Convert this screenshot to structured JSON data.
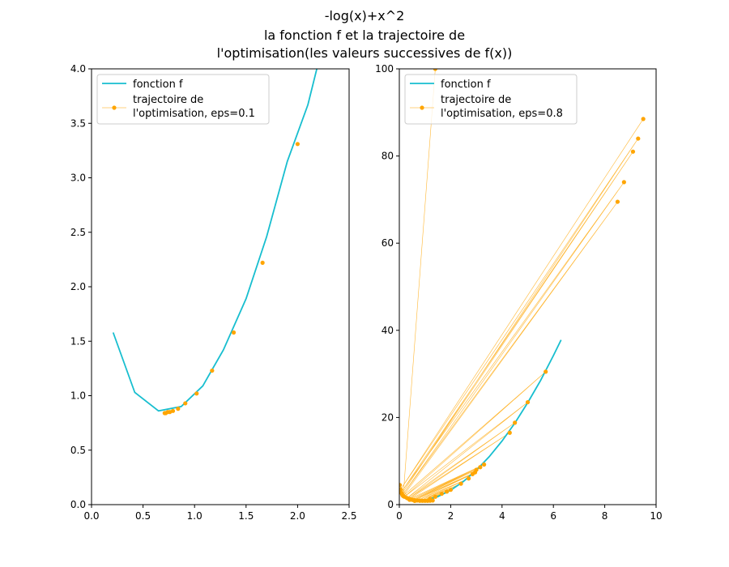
{
  "figure": {
    "title_lines": [
      "-log(x)+x^2",
      "la fonction f et la trajectoire de",
      "l'optimisation(les valeurs successives de f(x))"
    ]
  },
  "colors": {
    "function": "#17becf",
    "trajectory": "#ffa500"
  },
  "chart_data": [
    {
      "type": "line",
      "xlim": [
        0.0,
        2.5
      ],
      "ylim": [
        0.0,
        4.0
      ],
      "x_ticks": [
        "0.0",
        "0.5",
        "1.0",
        "1.5",
        "2.0",
        "2.5"
      ],
      "x_tick_values": [
        0.0,
        0.5,
        1.0,
        1.5,
        2.0,
        2.5
      ],
      "y_ticks": [
        "0.0",
        "0.5",
        "1.0",
        "1.5",
        "2.0",
        "2.5",
        "3.0",
        "3.5",
        "4.0"
      ],
      "y_tick_values": [
        0.0,
        0.5,
        1.0,
        1.5,
        2.0,
        2.5,
        3.0,
        3.5,
        4.0
      ],
      "legend_position": "top-left",
      "series": [
        {
          "name": "fonction f",
          "kind": "line",
          "x": [
            0.21,
            0.42,
            0.65,
            0.87,
            1.08,
            1.28,
            1.5,
            1.7,
            1.9,
            2.1,
            2.2
          ],
          "y": [
            1.58,
            1.03,
            0.86,
            0.9,
            1.09,
            1.42,
            1.89,
            2.46,
            3.15,
            3.67,
            4.05
          ]
        },
        {
          "name": "trajectoire de\nl'optimisation, eps=0.1",
          "kind": "markers",
          "x": [
            2.0,
            1.66,
            1.38,
            1.17,
            1.02,
            0.91,
            0.84,
            0.79,
            0.76,
            0.74,
            0.72,
            0.71
          ],
          "y": [
            3.31,
            2.22,
            1.58,
            1.23,
            1.02,
            0.93,
            0.88,
            0.86,
            0.85,
            0.85,
            0.84,
            0.84
          ]
        }
      ]
    },
    {
      "type": "line",
      "xlim": [
        0,
        10
      ],
      "ylim": [
        0,
        100
      ],
      "x_ticks": [
        "0",
        "2",
        "4",
        "6",
        "8",
        "10"
      ],
      "x_tick_values": [
        0,
        2,
        4,
        6,
        8,
        10
      ],
      "y_ticks": [
        "0",
        "20",
        "40",
        "60",
        "80",
        "100"
      ],
      "y_tick_values": [
        0,
        20,
        40,
        60,
        80,
        100
      ],
      "legend_position": "top-left",
      "series": [
        {
          "name": "fonction f",
          "kind": "line",
          "x": [
            0.05,
            0.1,
            0.2,
            0.3,
            0.5,
            0.7,
            1.0,
            1.5,
            2.0,
            2.5,
            3.0,
            3.5,
            4.0,
            4.5,
            5.0,
            5.5,
            6.0,
            6.3
          ],
          "y": [
            3.0,
            2.31,
            1.65,
            1.29,
            0.94,
            0.85,
            1.0,
            1.84,
            3.31,
            5.33,
            7.9,
            11.0,
            14.6,
            18.7,
            23.4,
            28.5,
            34.2,
            37.8
          ]
        },
        {
          "name": "trajectoire de\nl'optimisation, eps=0.8",
          "kind": "markers+thin-lines",
          "x": [
            9.5,
            0.05,
            9.3,
            0.1,
            9.1,
            0.07,
            8.75,
            0.12,
            8.5,
            0.15,
            5.7,
            0.2,
            5.0,
            0.3,
            4.5,
            0.35,
            4.3,
            0.4,
            3.3,
            0.45,
            3.15,
            0.5,
            3.0,
            0.55,
            2.95,
            0.6,
            2.85,
            0.7,
            2.7,
            0.8,
            2.4,
            0.9,
            2.0,
            1.0,
            1.85,
            1.1,
            1.65,
            1.2,
            1.4,
            1.3,
            1.2,
            0.8,
            0.6,
            0.4,
            0.02,
            0.15,
            1.4
          ],
          "y": [
            88.5,
            3.5,
            84.0,
            2.5,
            81.0,
            2.8,
            74.0,
            2.2,
            69.5,
            2.0,
            30.5,
            1.8,
            23.5,
            1.5,
            18.8,
            1.4,
            16.5,
            1.3,
            9.2,
            1.2,
            8.6,
            1.1,
            8.0,
            1.05,
            7.4,
            1.0,
            7.0,
            0.95,
            6.0,
            0.9,
            4.8,
            0.88,
            3.4,
            0.87,
            3.0,
            0.88,
            2.5,
            0.9,
            1.8,
            0.95,
            1.3,
            0.9,
            0.85,
            1.1,
            4.5,
            2.0,
            100
          ]
        }
      ]
    }
  ]
}
